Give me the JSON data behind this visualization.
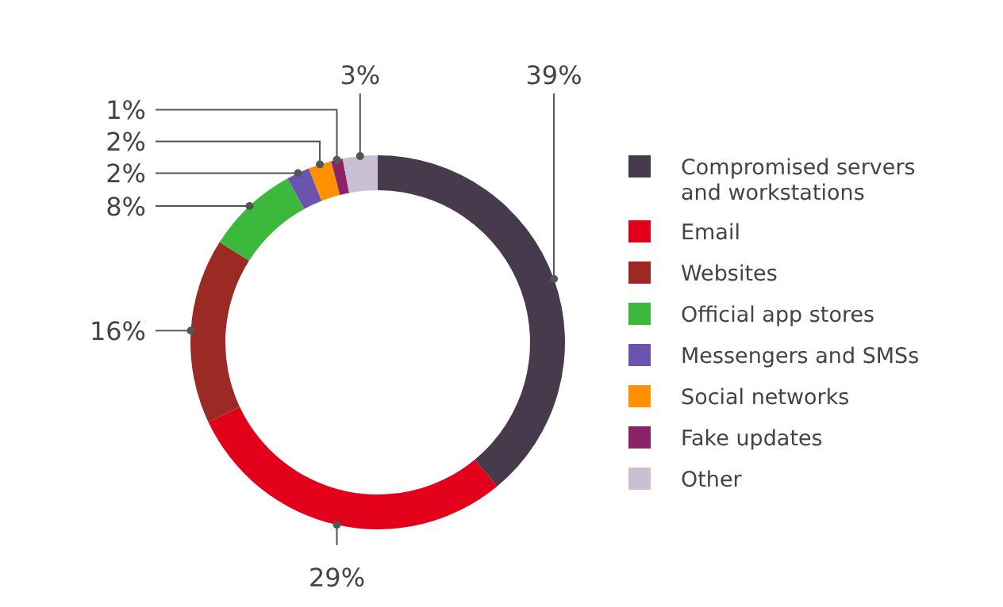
{
  "chart_data": {
    "type": "donut",
    "categories": [
      "Compromised servers and workstations",
      "Email",
      "Websites",
      "Official app stores",
      "Messengers and SMSs",
      "Social networks",
      "Fake updates",
      "Other"
    ],
    "values": [
      39,
      29,
      16,
      8,
      2,
      2,
      1,
      3
    ],
    "value_labels": [
      "39%",
      "29%",
      "16%",
      "8%",
      "2%",
      "2%",
      "1%",
      "3%"
    ],
    "colors": [
      "#463a4c",
      "#e3001b",
      "#9b2a25",
      "#3cb93c",
      "#6a54b0",
      "#ff9100",
      "#8a2467",
      "#c9bfd3"
    ],
    "legend": "right"
  }
}
